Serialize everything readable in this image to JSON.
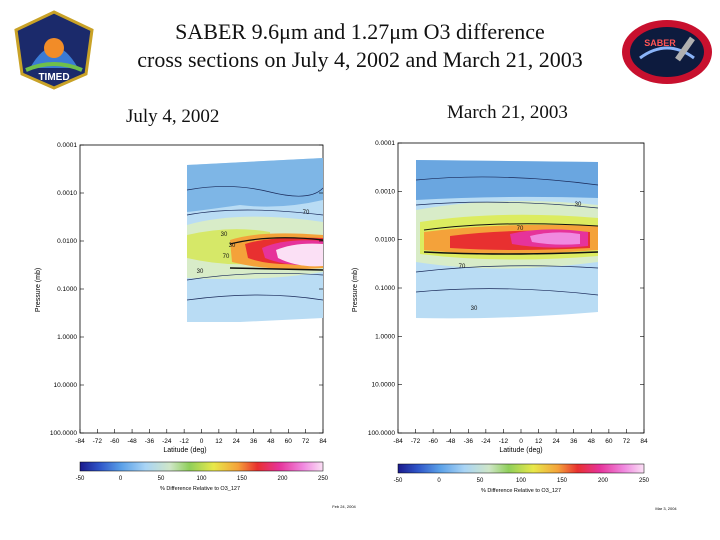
{
  "slide": {
    "title_line1": "SABER 9.6μm and 1.27μm O3 difference",
    "title_line2": "cross sections on July 4, 2002 and March 21, 2003"
  },
  "logos": {
    "left_text": "TIMED",
    "right_text": "SABER"
  },
  "chart_data": [
    {
      "type": "heatmap",
      "title": "July 4, 2002",
      "xlabel": "Latitude (deg)",
      "ylabel": "Pressure (mb)",
      "xlim": [
        -84,
        84
      ],
      "x_ticks": [
        "-84",
        "-72",
        "-60",
        "-48",
        "-36",
        "-24",
        "-12",
        "0",
        "12",
        "24",
        "36",
        "48",
        "60",
        "72",
        "84"
      ],
      "y_scale": "log",
      "ylim": [
        100,
        0.0001
      ],
      "y_ticks": [
        "0.0001",
        "0.0010",
        "0.0100",
        "0.1000",
        "1.0000",
        "10.0000",
        "100.0000"
      ],
      "contour_labels": [
        "70",
        "30",
        "30",
        "70",
        "30"
      ],
      "colorbar": {
        "label": "% Difference Relative to O3_127",
        "ticks": [
          "-50",
          "0",
          "50",
          "100",
          "150",
          "200",
          "250"
        ],
        "range": [
          -50,
          250
        ]
      },
      "footnote": "Feb 24, 2004"
    },
    {
      "type": "heatmap",
      "title": "March 21, 2003",
      "xlabel": "Latitude (deg)",
      "ylabel": "Pressure (mb)",
      "xlim": [
        -84,
        84
      ],
      "x_ticks": [
        "-84",
        "-72",
        "-60",
        "-48",
        "-36",
        "-24",
        "-12",
        "0",
        "12",
        "24",
        "36",
        "48",
        "60",
        "72",
        "84"
      ],
      "y_scale": "log",
      "ylim": [
        100,
        0.0001
      ],
      "y_ticks": [
        "0.0001",
        "0.0010",
        "0.0100",
        "0.1000",
        "1.0000",
        "10.0000",
        "100.0000"
      ],
      "contour_labels": [
        "30",
        "70",
        "70",
        "30"
      ],
      "colorbar": {
        "label": "% Difference Relative to O3_127",
        "ticks": [
          "-50",
          "0",
          "50",
          "100",
          "150",
          "200",
          "250"
        ],
        "range": [
          -50,
          250
        ]
      },
      "footnote": "Mar 3, 2004"
    }
  ]
}
